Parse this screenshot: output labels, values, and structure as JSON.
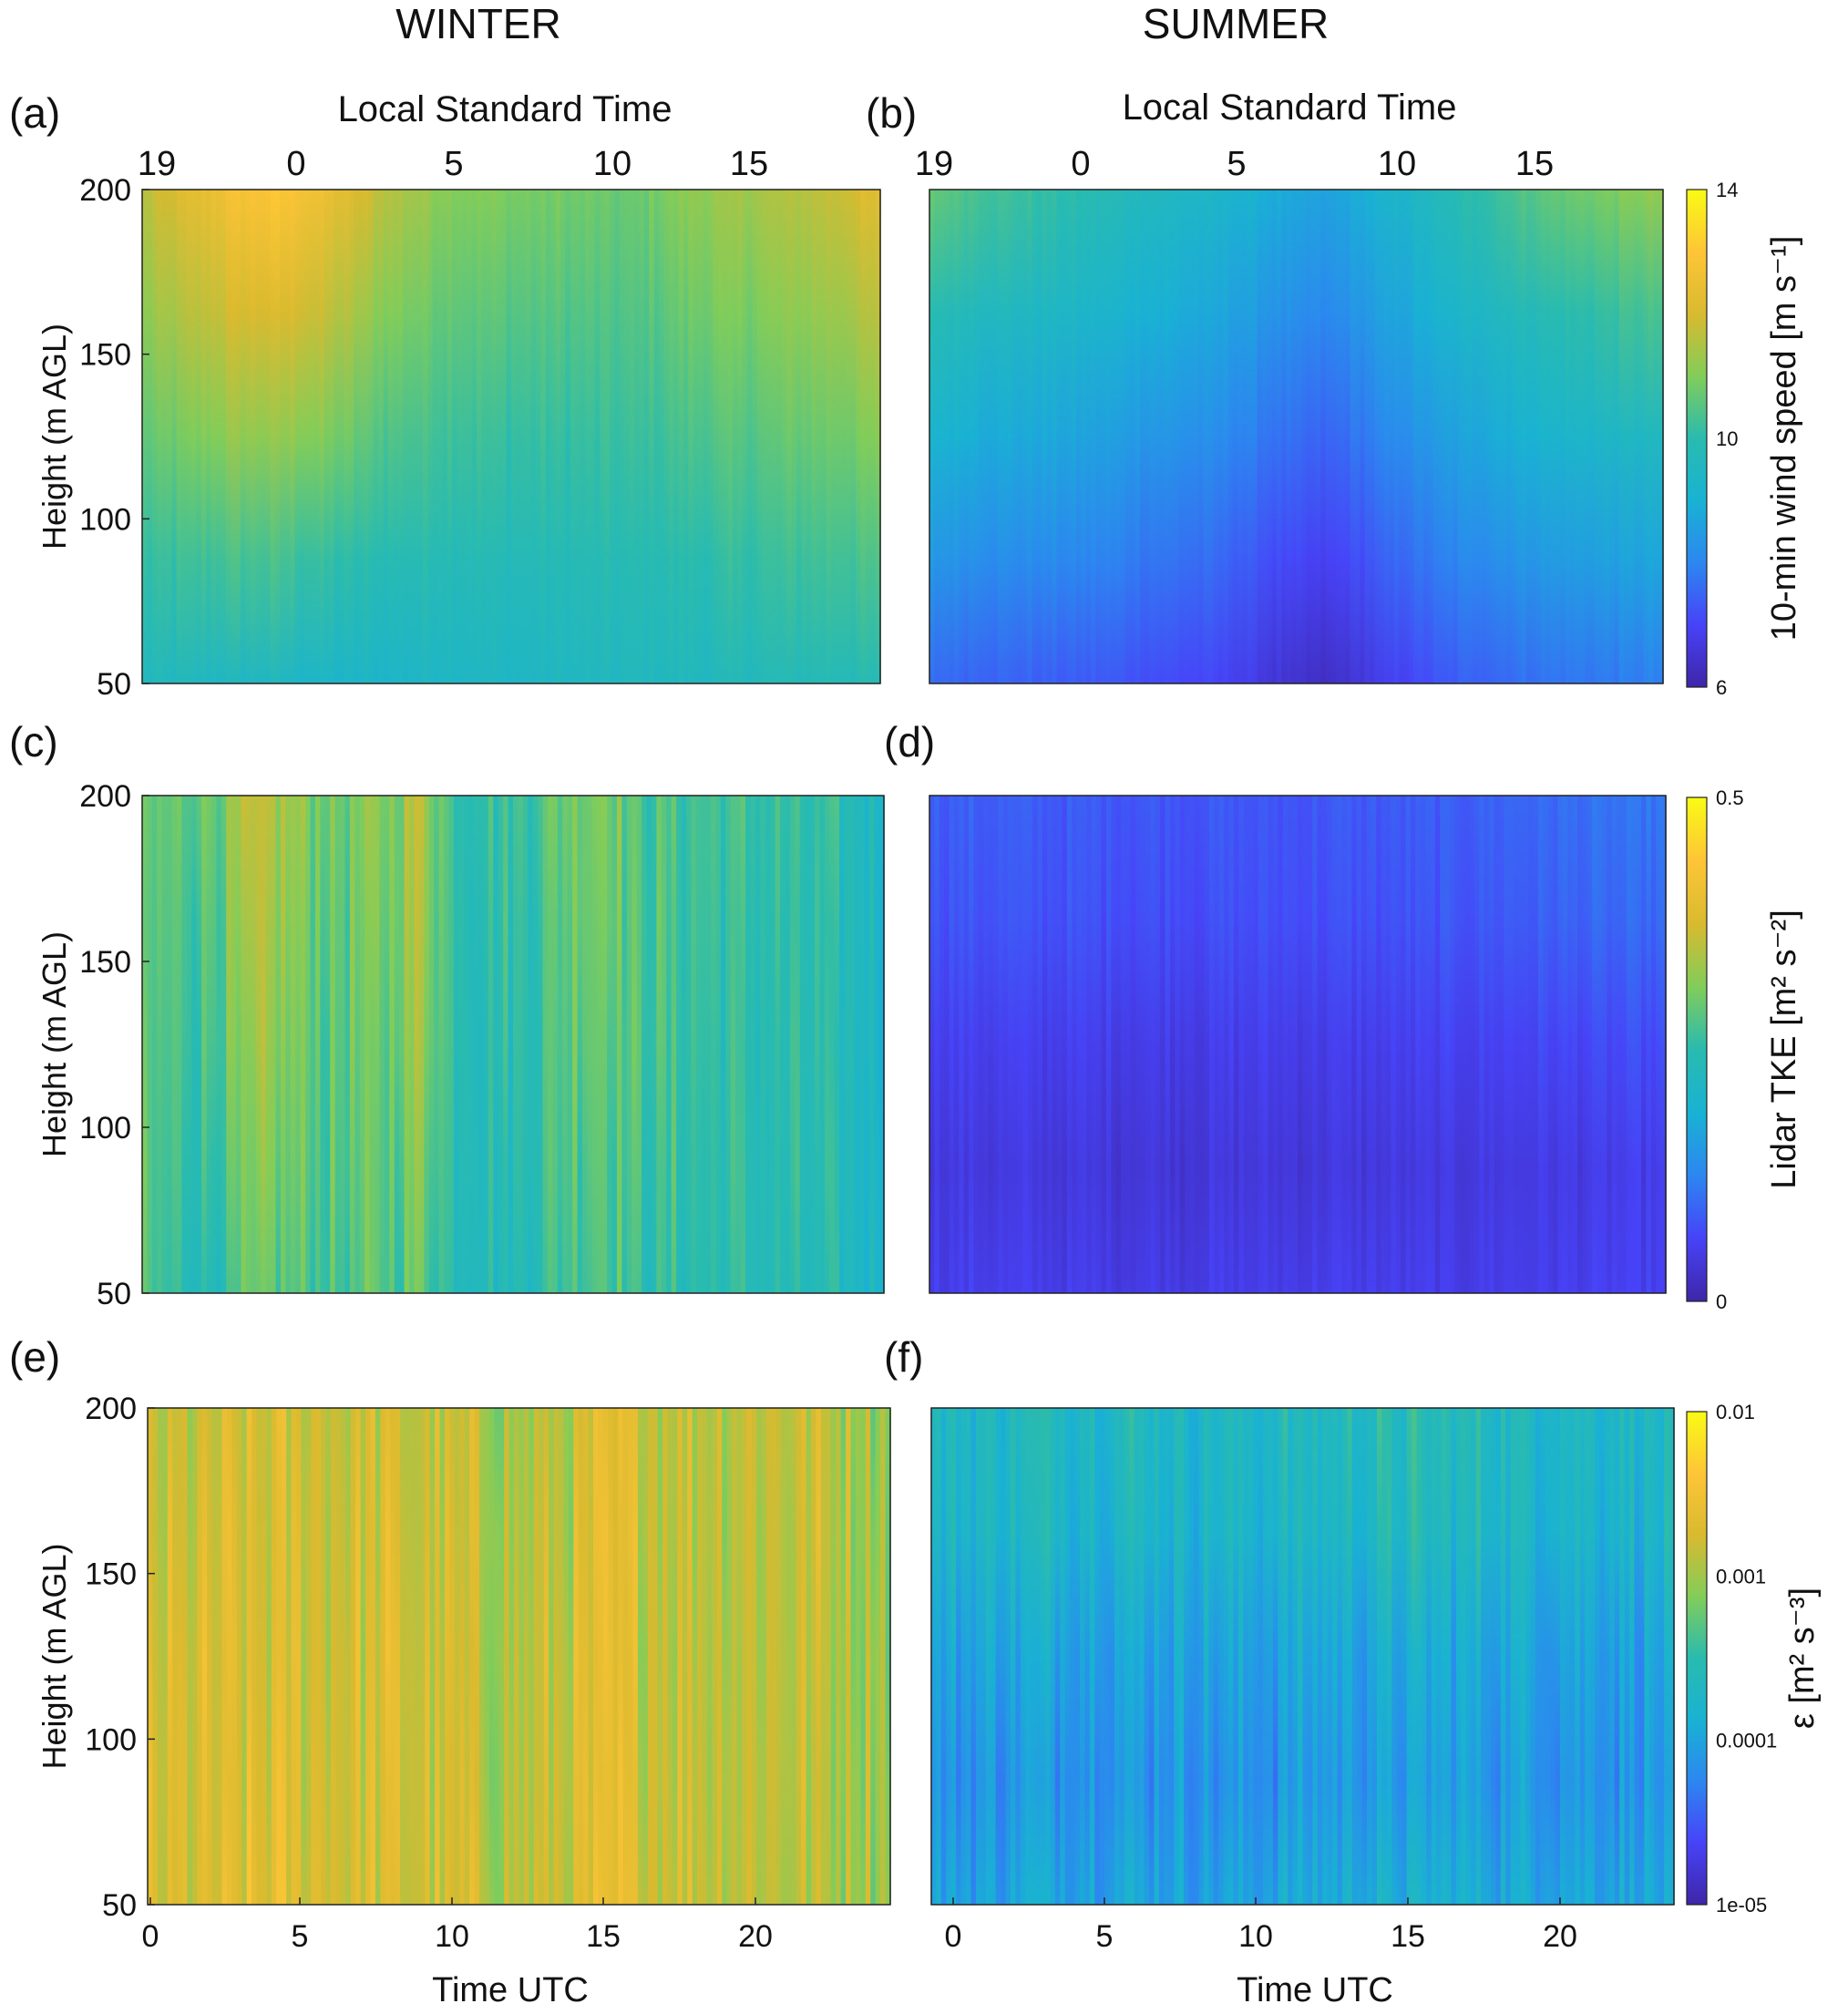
{
  "headers": {
    "winter": "WINTER",
    "summer": "SUMMER"
  },
  "axis_titles": {
    "top_x": "Local Standard Time",
    "bottom_x": "Time UTC",
    "y": "Height (m AGL)"
  },
  "colors": {
    "colormap": [
      "#3e26a8",
      "#4743f8",
      "#2c87f0",
      "#19b2d3",
      "#29bbaf",
      "#82cd59",
      "#d9ba2f",
      "#fec537",
      "#f9fb14"
    ],
    "frame": "#222222"
  },
  "chart_data": [
    {
      "type": "heatmap",
      "panel_label": "(a)",
      "season": "WINTER",
      "ylabel": "Height (m AGL)",
      "ylim": [
        50,
        200
      ],
      "yticks": [
        "50",
        "100",
        "150",
        "200"
      ],
      "top_xlabel": "Local Standard Time",
      "top_xticks": [
        "19",
        "0",
        "5",
        "10",
        "15"
      ],
      "colorbar": null,
      "field": {
        "hour_knots": [
          0,
          3,
          4,
          5,
          6,
          8,
          10,
          12,
          14,
          16,
          18,
          20,
          22,
          24
        ],
        "bottom_ms": [
          9.6,
          9.5,
          9.5,
          9.4,
          9.3,
          9.3,
          9.5,
          9.4,
          9.5,
          9.6,
          9.6,
          9.7,
          9.8,
          9.8
        ],
        "top_ms": [
          11.6,
          12.8,
          12.9,
          12.9,
          12.5,
          11.6,
          11.1,
          10.9,
          10.8,
          10.7,
          11.2,
          11.4,
          11.7,
          12.2
        ],
        "streak": 0.2,
        "scale": "linear"
      }
    },
    {
      "type": "heatmap",
      "panel_label": "(b)",
      "season": "SUMMER",
      "ylim": [
        50,
        200
      ],
      "yticks": [],
      "top_xlabel": "Local Standard Time",
      "top_xticks": [
        "19",
        "0",
        "5",
        "10",
        "15"
      ],
      "colorbar": {
        "label": "10-min wind speed [m s⁻¹]",
        "range": [
          6,
          14
        ],
        "ticks": [
          "6",
          "10",
          "14"
        ]
      },
      "field": {
        "hour_knots": [
          0,
          2,
          4,
          6,
          8,
          10,
          12,
          13,
          14,
          16,
          18,
          20,
          22,
          24
        ],
        "bottom_ms": [
          7.6,
          7.5,
          7.4,
          7.3,
          7.1,
          6.9,
          6.4,
          6.3,
          6.6,
          7.1,
          7.5,
          7.7,
          7.8,
          7.9
        ],
        "top_ms": [
          10.7,
          10.3,
          10.1,
          9.8,
          9.5,
          9.2,
          8.7,
          8.6,
          8.9,
          9.5,
          10.1,
          10.6,
          10.9,
          11.2
        ],
        "streak": 0.15,
        "scale": "linear"
      }
    },
    {
      "type": "heatmap",
      "panel_label": "(c)",
      "season": "WINTER",
      "ylabel": "Height (m AGL)",
      "ylim": [
        50,
        200
      ],
      "yticks": [
        "50",
        "100",
        "150",
        "200"
      ],
      "colorbar": null,
      "field": {
        "hour_knots": [
          0,
          2,
          4,
          6,
          8,
          9,
          10,
          12,
          14,
          15,
          16,
          18,
          20,
          22,
          24
        ],
        "bottom_ms": [
          0.27,
          0.24,
          0.29,
          0.27,
          0.28,
          0.3,
          0.25,
          0.23,
          0.28,
          0.29,
          0.26,
          0.25,
          0.24,
          0.23,
          0.21
        ],
        "top_ms": [
          0.28,
          0.3,
          0.35,
          0.3,
          0.31,
          0.36,
          0.27,
          0.26,
          0.31,
          0.32,
          0.28,
          0.27,
          0.26,
          0.25,
          0.22
        ],
        "streak": 0.04,
        "scale": "linear"
      }
    },
    {
      "type": "heatmap",
      "panel_label": "(d)",
      "season": "SUMMER",
      "ylim": [
        50,
        200
      ],
      "yticks": [],
      "colorbar": {
        "label": "Lidar TKE [m² s⁻²]",
        "range": [
          0,
          0.5
        ],
        "ticks": [
          "0",
          "0.5"
        ]
      },
      "field": {
        "hour_knots": [
          0,
          4,
          8,
          12,
          16,
          20,
          24
        ],
        "bottom_ms": [
          0.055,
          0.052,
          0.05,
          0.053,
          0.052,
          0.055,
          0.058
        ],
        "top_ms": [
          0.09,
          0.085,
          0.082,
          0.08,
          0.085,
          0.1,
          0.11
        ],
        "mid_dip": 0.025,
        "streak": 0.015,
        "scale": "linear"
      }
    },
    {
      "type": "heatmap",
      "panel_label": "(e)",
      "season": "WINTER",
      "xlabel": "Time UTC",
      "xlim": [
        0,
        24.5
      ],
      "xticks": [
        "0",
        "5",
        "10",
        "15",
        "20"
      ],
      "ylabel": "Height (m AGL)",
      "ylim": [
        50,
        200
      ],
      "yticks": [
        "50",
        "100",
        "150",
        "200"
      ],
      "colorbar": null,
      "field": {
        "hour_knots": [
          0,
          4,
          8,
          12,
          15,
          18,
          21,
          24
        ],
        "bottom_ms": [
          -2.8,
          -2.7,
          -2.75,
          -2.9,
          -2.7,
          -2.8,
          -2.9,
          -2.95
        ],
        "top_ms": [
          -2.9,
          -2.8,
          -2.8,
          -3.0,
          -2.75,
          -2.85,
          -2.8,
          -3.0
        ],
        "streak": 0.35,
        "scale": "log10"
      }
    },
    {
      "type": "heatmap",
      "panel_label": "(f)",
      "season": "SUMMER",
      "xlabel": "Time UTC",
      "xlim": [
        0,
        24.5
      ],
      "xticks": [
        "0",
        "5",
        "10",
        "15",
        "20"
      ],
      "ylim": [
        50,
        200
      ],
      "yticks": [],
      "colorbar": {
        "label": "ε [m² s⁻³]",
        "range": [
          -5,
          -2
        ],
        "scale": "log10",
        "ticks": [
          "1e-05",
          "0.0001",
          "0.001",
          "0.01"
        ]
      },
      "field": {
        "hour_knots": [
          0,
          4,
          8,
          10,
          12,
          16,
          20,
          24
        ],
        "bottom_ms": [
          -4.0,
          -3.9,
          -3.95,
          -4.0,
          -3.9,
          -3.85,
          -3.9,
          -3.95
        ],
        "top_ms": [
          -3.7,
          -3.6,
          -3.65,
          -3.7,
          -3.65,
          -3.6,
          -3.65,
          -3.7
        ],
        "mid_dip": 0.3,
        "streak": 0.3,
        "scale": "log10"
      }
    }
  ]
}
